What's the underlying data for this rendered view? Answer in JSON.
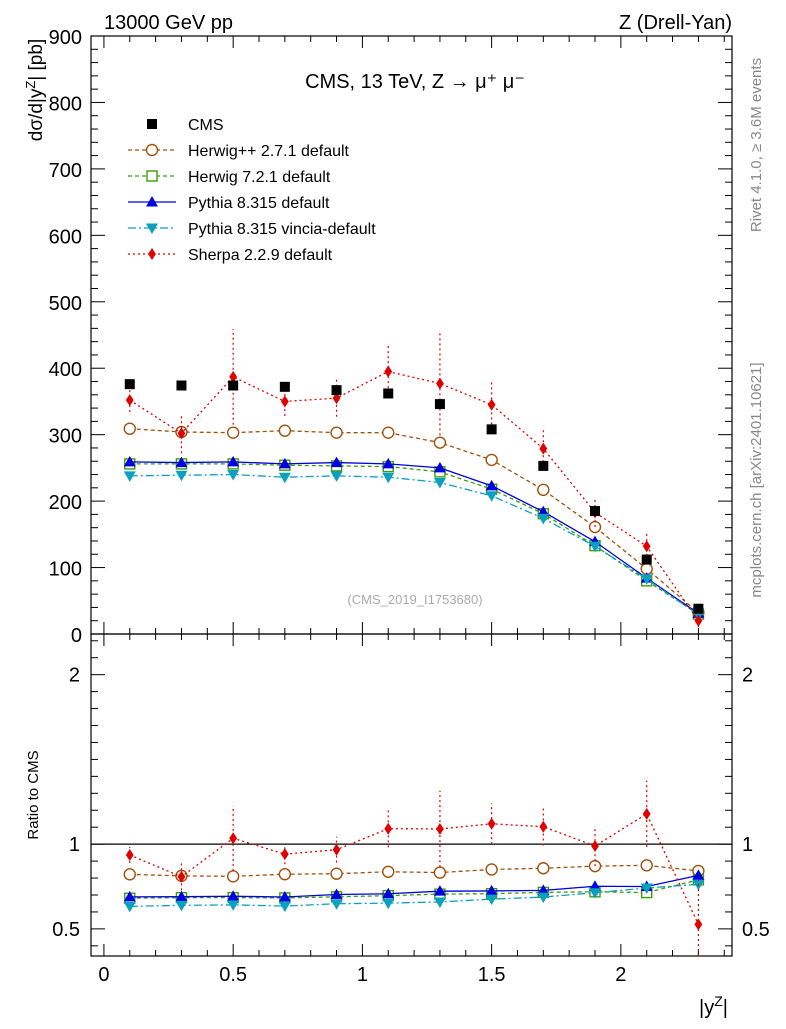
{
  "header": {
    "left": "13000 GeV pp",
    "right": "Z (Drell-Yan)"
  },
  "side_labels": {
    "rivet": "Rivet 4.1.0, ≥ 3.6M events",
    "mcplots": "mcplots.cern.ch [arXiv:2401.10621]"
  },
  "chart_data": {
    "type": "scatter",
    "title": "CMS, 13 TeV, Z → μ⁺ μ⁻",
    "analysis_tag": "(CMS_2019_I1753680)",
    "xlabel": "|y^Z|",
    "ylabel": "dσ/d|y^Z| [pb]",
    "ratio_ylabel": "Ratio to CMS",
    "xlim": [
      -0.05,
      2.43
    ],
    "ylim": [
      0,
      900
    ],
    "ratio_ylim": [
      0.34,
      2.24
    ],
    "x_ticks": [
      "0",
      "0.5",
      "1",
      "1.5",
      "2"
    ],
    "y_ticks": [
      "0",
      "100",
      "200",
      "300",
      "400",
      "500",
      "600",
      "700",
      "800",
      "900"
    ],
    "ratio_ticks": [
      "0.5",
      "1",
      "2"
    ],
    "x": [
      0.1,
      0.3,
      0.5,
      0.7,
      0.9,
      1.1,
      1.3,
      1.5,
      1.7,
      1.9,
      2.1,
      2.3
    ],
    "data": {
      "name": "CMS",
      "color": "#000000",
      "values": [
        376,
        374,
        374,
        372,
        367,
        362,
        346,
        308,
        253,
        185,
        112,
        38
      ]
    },
    "series": [
      {
        "name": "Herwig++ 2.7.1 default",
        "color": "#a0520d",
        "marker": "open-circle",
        "dash": "4,3",
        "values": [
          309,
          304,
          303,
          306,
          303,
          303,
          288,
          262,
          217,
          161,
          98,
          32
        ]
      },
      {
        "name": "Herwig 7.2.1 default",
        "color": "#3d9e0c",
        "marker": "open-square",
        "dash": "4,3",
        "values": [
          256,
          256,
          256,
          254,
          253,
          252,
          244,
          218,
          181,
          133,
          80,
          30
        ]
      },
      {
        "name": "Pythia 8.315 default",
        "color": "#0000e0",
        "marker": "triangle-up",
        "dash": "",
        "values": [
          259,
          258,
          259,
          256,
          258,
          256,
          250,
          223,
          184,
          139,
          84,
          31
        ]
      },
      {
        "name": "Pythia 8.315 vincia-default",
        "color": "#0aa0c0",
        "marker": "triangle-down",
        "dash": "8,3,2,3",
        "values": [
          238,
          239,
          240,
          236,
          238,
          236,
          228,
          208,
          174,
          132,
          83,
          29
        ]
      },
      {
        "name": "Sherpa 2.2.9 default",
        "color": "#e00000",
        "marker": "diamond",
        "dash": "2,3",
        "values": [
          352,
          302,
          387,
          350,
          355,
          395,
          377,
          345,
          279,
          183,
          132,
          20
        ]
      }
    ],
    "sherpa_errors": [
      18,
      30,
      72,
      22,
      28,
      40,
      78,
      37,
      28,
      22,
      22,
      10
    ]
  }
}
